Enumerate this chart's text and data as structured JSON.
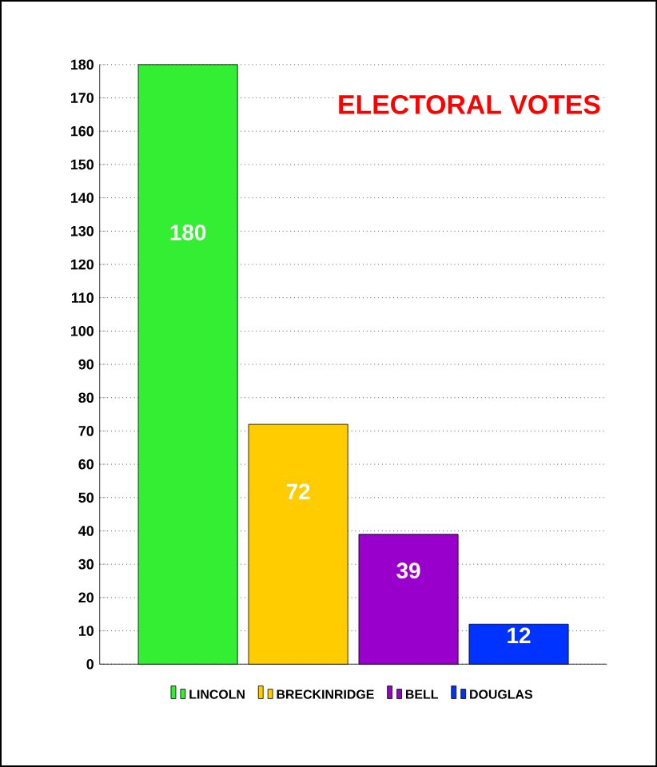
{
  "chart_data": {
    "type": "bar",
    "title": "ELECTORAL VOTES",
    "categories": [
      null,
      null,
      null,
      null
    ],
    "series": [
      {
        "name": "LINCOLN",
        "color": "#33ee33",
        "values": [
          180,
          null,
          null,
          null
        ]
      },
      {
        "name": "BRECKINRIDGE",
        "color": "#ffcc00",
        "values": [
          null,
          72,
          null,
          null
        ]
      },
      {
        "name": "BELL",
        "color": "#9900cc",
        "values": [
          null,
          null,
          39,
          null
        ]
      },
      {
        "name": "DOUGLAS",
        "color": "#0033ff",
        "values": [
          null,
          null,
          null,
          12
        ]
      }
    ],
    "ylim": [
      0,
      180
    ],
    "yticks": [
      0,
      10,
      20,
      30,
      40,
      50,
      60,
      70,
      80,
      90,
      100,
      110,
      120,
      130,
      140,
      150,
      160,
      170,
      180
    ],
    "grid": "y",
    "legend": "bottom",
    "data_labels": true
  }
}
